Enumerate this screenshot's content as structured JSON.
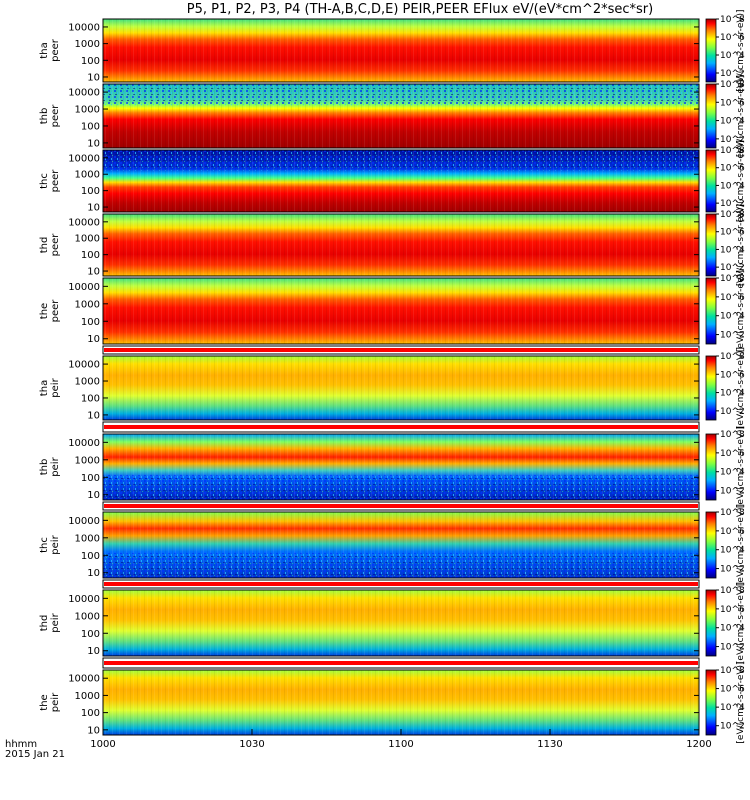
{
  "chart_data": {
    "type": "heatmap",
    "title": "P5, P1, P2, P3, P4 (TH-A,B,C,D,E) PEIR,PEER EFlux eV/(eV*cm^2*sec*sr)",
    "time_axis": {
      "ticks": [
        "1000",
        "1030",
        "1100",
        "1130",
        "1200"
      ],
      "range": [
        "1000",
        "1200"
      ],
      "label_line1": "hhmm",
      "label_line2": "2015 Jan 21"
    },
    "energy_axis": {
      "scale": "log",
      "range_eV": [
        5,
        30000
      ],
      "ticks": [
        "10",
        "100",
        "1000",
        "10000"
      ]
    },
    "colorbar": {
      "scale": "log",
      "range": [
        10,
        100000000
      ],
      "ticks": [
        "10^2",
        "10^4",
        "10^6",
        "10^8"
      ],
      "unit_label": "[eV/(cm2-s-sr-eV)]"
    },
    "panels": [
      {
        "probe": "tha",
        "species": "peer",
        "label1": "tha",
        "label2": "peer"
      },
      {
        "probe": "thb",
        "species": "peer",
        "label1": "thb",
        "label2": "peer"
      },
      {
        "probe": "thc",
        "species": "peer",
        "label1": "thc",
        "label2": "peer"
      },
      {
        "probe": "thd",
        "species": "peer",
        "label1": "thd",
        "label2": "peer"
      },
      {
        "probe": "the",
        "species": "peer",
        "label1": "the",
        "label2": "peer"
      },
      {
        "probe": "tha",
        "species": "peir",
        "label1": "tha",
        "label2": "peir"
      },
      {
        "probe": "thb",
        "species": "peir",
        "label1": "thb",
        "label2": "peir"
      },
      {
        "probe": "thc",
        "species": "peir",
        "label1": "thc",
        "label2": "peir"
      },
      {
        "probe": "thd",
        "species": "peir",
        "label1": "thd",
        "label2": "peir"
      },
      {
        "probe": "the",
        "species": "peir",
        "label1": "the",
        "label2": "peir"
      }
    ]
  }
}
